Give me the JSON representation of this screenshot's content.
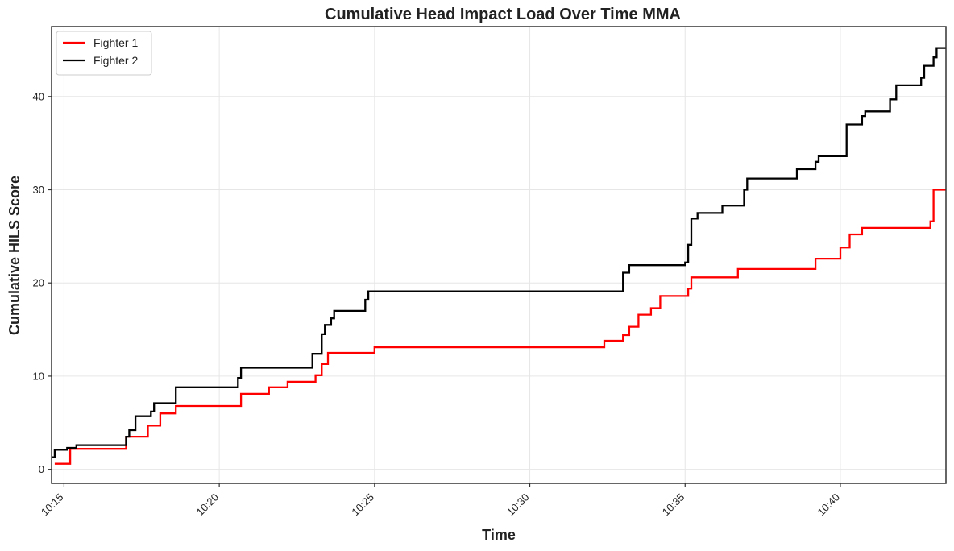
{
  "chart_data": {
    "type": "line",
    "step": true,
    "title": "Cumulative Head Impact Load Over Time MMA",
    "xlabel": "Time",
    "ylabel": "Cumulative HILS Score",
    "x_unit": "time of day (hours since midnight, e.g. 10.25 = 10:15)",
    "xlim": [
      "10:14.6",
      "10:43.4"
    ],
    "ylim": [
      -1.5,
      47.5
    ],
    "x_ticks": [
      "10:15",
      "10:20",
      "10:25",
      "10:30",
      "10:35",
      "10:40"
    ],
    "y_ticks": [
      0,
      10,
      20,
      30,
      40
    ],
    "grid": true,
    "legend_position": "top-left",
    "series": [
      {
        "name": "Fighter 1",
        "color": "#ff0000",
        "points": [
          [
            "10:14.7",
            0.6
          ],
          [
            "10:15.2",
            2.2
          ],
          [
            "10:17.0",
            3.5
          ],
          [
            "10:17.7",
            4.7
          ],
          [
            "10:18.1",
            6.0
          ],
          [
            "10:18.6",
            6.8
          ],
          [
            "10:20.7",
            8.1
          ],
          [
            "10:21.6",
            8.8
          ],
          [
            "10:22.2",
            9.4
          ],
          [
            "10:23.1",
            10.1
          ],
          [
            "10:23.3",
            11.3
          ],
          [
            "10:23.5",
            12.5
          ],
          [
            "10:25.0",
            13.1
          ],
          [
            "10:32.4",
            13.8
          ],
          [
            "10:33.0",
            14.4
          ],
          [
            "10:33.2",
            15.3
          ],
          [
            "10:33.5",
            16.6
          ],
          [
            "10:33.9",
            17.3
          ],
          [
            "10:34.2",
            18.6
          ],
          [
            "10:35.1",
            19.4
          ],
          [
            "10:35.2",
            20.6
          ],
          [
            "10:36.7",
            21.5
          ],
          [
            "10:39.2",
            22.6
          ],
          [
            "10:40.0",
            23.8
          ],
          [
            "10:40.3",
            25.2
          ],
          [
            "10:40.7",
            25.9
          ],
          [
            "10:42.9",
            26.6
          ],
          [
            "10:43.0",
            27.4
          ],
          [
            "10:43.0",
            30.0
          ],
          [
            "10:43.4",
            30.0
          ]
        ]
      },
      {
        "name": "Fighter 2",
        "color": "#000000",
        "points": [
          [
            "10:14.6",
            1.3
          ],
          [
            "10:14.7",
            2.1
          ],
          [
            "10:15.1",
            2.3
          ],
          [
            "10:15.4",
            2.6
          ],
          [
            "10:17.0",
            3.5
          ],
          [
            "10:17.1",
            4.2
          ],
          [
            "10:17.3",
            5.7
          ],
          [
            "10:17.8",
            6.2
          ],
          [
            "10:17.9",
            7.1
          ],
          [
            "10:18.6",
            8.8
          ],
          [
            "10:20.6",
            9.8
          ],
          [
            "10:20.7",
            10.9
          ],
          [
            "10:23.0",
            12.4
          ],
          [
            "10:23.3",
            14.5
          ],
          [
            "10:23.4",
            15.5
          ],
          [
            "10:23.6",
            16.2
          ],
          [
            "10:23.7",
            17.0
          ],
          [
            "10:24.7",
            18.2
          ],
          [
            "10:24.8",
            19.1
          ],
          [
            "10:33.0",
            19.7
          ],
          [
            "10:33.0",
            21.1
          ],
          [
            "10:33.2",
            21.9
          ],
          [
            "10:35.0",
            22.2
          ],
          [
            "10:35.1",
            24.1
          ],
          [
            "10:35.2",
            26.9
          ],
          [
            "10:35.4",
            27.5
          ],
          [
            "10:36.2",
            28.3
          ],
          [
            "10:36.9",
            30.0
          ],
          [
            "10:37.0",
            31.2
          ],
          [
            "10:38.6",
            32.2
          ],
          [
            "10:39.2",
            33.0
          ],
          [
            "10:39.3",
            33.6
          ],
          [
            "10:40.2",
            37.0
          ],
          [
            "10:40.7",
            37.9
          ],
          [
            "10:40.8",
            38.4
          ],
          [
            "10:41.6",
            39.7
          ],
          [
            "10:41.8",
            41.2
          ],
          [
            "10:42.6",
            42.0
          ],
          [
            "10:42.7",
            43.3
          ],
          [
            "10:43.0",
            44.2
          ],
          [
            "10:43.1",
            45.2
          ],
          [
            "10:43.4",
            45.2
          ]
        ]
      }
    ]
  }
}
